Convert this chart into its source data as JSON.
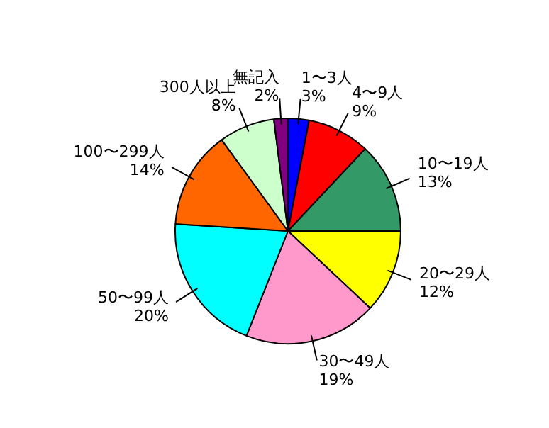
{
  "chart_data": {
    "type": "pie",
    "categories": [
      "1〜3人",
      "4〜9人",
      "10〜19人",
      "20〜29人",
      "30〜49人",
      "50〜99人",
      "100〜299人",
      "300人以上",
      "無記入"
    ],
    "values": [
      3,
      9,
      13,
      12,
      19,
      20,
      14,
      8,
      2
    ],
    "value_labels": [
      "3%",
      "9%",
      "13%",
      "12%",
      "19%",
      "20%",
      "14%",
      "8%",
      "2%"
    ],
    "colors": [
      "#0000ff",
      "#ff0000",
      "#339966",
      "#ffff00",
      "#ff99cc",
      "#00ffff",
      "#ff6600",
      "#ccffcc",
      "#800080"
    ],
    "legend": false
  }
}
